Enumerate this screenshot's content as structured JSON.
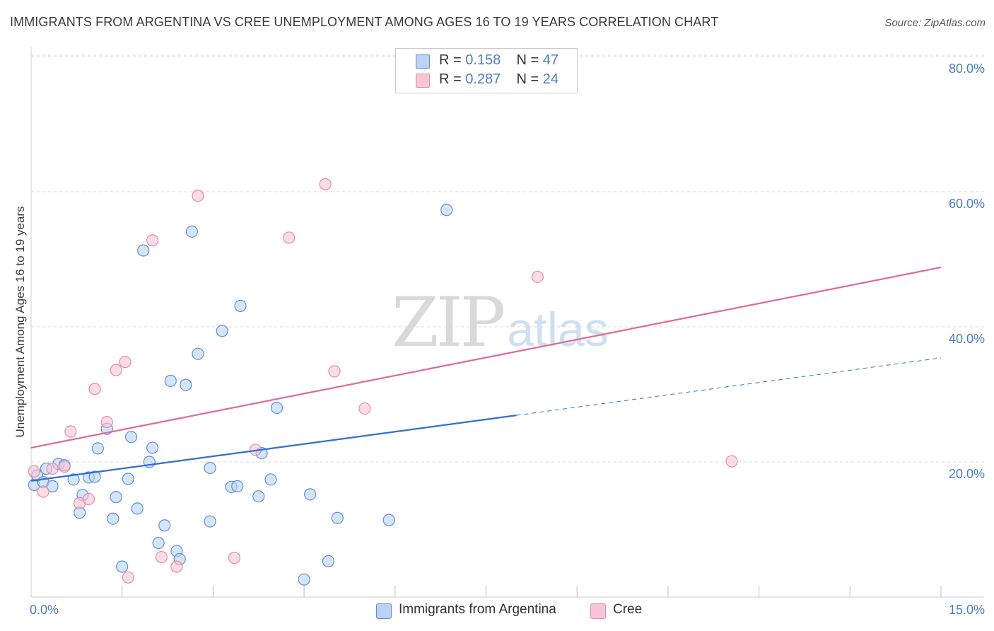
{
  "title": "IMMIGRANTS FROM ARGENTINA VS CREE UNEMPLOYMENT AMONG AGES 16 TO 19 YEARS CORRELATION CHART",
  "source": "Source: ZipAtlas.com",
  "watermark": {
    "zip": "ZIP",
    "atlas": "atlas"
  },
  "colors": {
    "blue_fill": "#b8d3f5",
    "blue_stroke": "#5b8fd8",
    "blue_line": "#2f6fd0",
    "pink_fill": "#f7c5d5",
    "pink_stroke": "#e58aa8",
    "pink_line": "#e06a93",
    "tick_text": "#4a7cc9",
    "grid": "#d8d8d8"
  },
  "legend": {
    "rows": [
      {
        "r_label": "R = ",
        "r_value": "0.158",
        "n_label": "N = ",
        "n_value": "47",
        "series": "blue"
      },
      {
        "r_label": "R = ",
        "r_value": "0.287",
        "n_label": "N = ",
        "n_value": "24",
        "series": "pink"
      }
    ]
  },
  "chart_data": {
    "type": "scatter",
    "title": "IMMIGRANTS FROM ARGENTINA VS CREE UNEMPLOYMENT AMONG AGES 16 TO 19 YEARS CORRELATION CHART",
    "xlabel": "",
    "ylabel": "Unemployment Among Ages 16 to 19 years",
    "xlim": [
      0,
      15
    ],
    "ylim": [
      0,
      80
    ],
    "x_tick_labels": [
      "0.0%",
      "15.0%"
    ],
    "y_ticks": [
      20,
      40,
      60,
      80
    ],
    "y_tick_labels": [
      "20.0%",
      "40.0%",
      "60.0%",
      "80.0%"
    ],
    "grid": true,
    "legend_position": "top-center",
    "series": [
      {
        "name": "Immigrants from Argentina",
        "color": "blue",
        "R": 0.158,
        "N": 47,
        "trend": {
          "x0": 0,
          "y0": 17.2,
          "x1": 8.0,
          "y1": 26.9,
          "dashed_to_x": 15,
          "dashed_to_y": 35.4
        },
        "points": [
          [
            0.05,
            16.6
          ],
          [
            0.1,
            18.0
          ],
          [
            0.2,
            17.0
          ],
          [
            0.25,
            19.0
          ],
          [
            0.35,
            16.4
          ],
          [
            0.45,
            19.7
          ],
          [
            0.55,
            19.5
          ],
          [
            0.7,
            17.4
          ],
          [
            0.8,
            12.5
          ],
          [
            0.85,
            15.1
          ],
          [
            0.95,
            17.7
          ],
          [
            1.05,
            17.8
          ],
          [
            1.1,
            22.0
          ],
          [
            1.25,
            24.9
          ],
          [
            1.35,
            11.6
          ],
          [
            1.4,
            14.8
          ],
          [
            1.5,
            4.5
          ],
          [
            1.6,
            17.5
          ],
          [
            1.65,
            23.7
          ],
          [
            1.75,
            13.1
          ],
          [
            1.85,
            51.3
          ],
          [
            1.95,
            20.0
          ],
          [
            2.0,
            22.1
          ],
          [
            2.1,
            8.0
          ],
          [
            2.2,
            10.6
          ],
          [
            2.3,
            32.0
          ],
          [
            2.4,
            6.8
          ],
          [
            2.45,
            5.6
          ],
          [
            2.55,
            31.4
          ],
          [
            2.65,
            54.1
          ],
          [
            2.75,
            36.0
          ],
          [
            2.95,
            11.2
          ],
          [
            2.95,
            19.1
          ],
          [
            3.15,
            39.4
          ],
          [
            3.3,
            16.3
          ],
          [
            3.4,
            16.4
          ],
          [
            3.45,
            43.1
          ],
          [
            3.75,
            14.9
          ],
          [
            3.8,
            21.3
          ],
          [
            3.95,
            17.4
          ],
          [
            4.05,
            28.0
          ],
          [
            4.5,
            2.6
          ],
          [
            4.6,
            15.2
          ],
          [
            4.9,
            5.3
          ],
          [
            5.05,
            11.7
          ],
          [
            5.9,
            11.4
          ],
          [
            6.85,
            57.3
          ]
        ]
      },
      {
        "name": "Cree",
        "color": "pink",
        "R": 0.287,
        "N": 24,
        "trend": {
          "x0": 0,
          "y0": 22.1,
          "x1": 15,
          "y1": 48.8
        },
        "points": [
          [
            0.05,
            18.6
          ],
          [
            0.2,
            15.6
          ],
          [
            0.35,
            19.0
          ],
          [
            0.55,
            19.3
          ],
          [
            0.65,
            24.5
          ],
          [
            0.8,
            13.9
          ],
          [
            0.95,
            14.5
          ],
          [
            1.05,
            30.8
          ],
          [
            1.25,
            25.9
          ],
          [
            1.4,
            33.6
          ],
          [
            1.55,
            34.8
          ],
          [
            1.6,
            2.9
          ],
          [
            2.0,
            52.8
          ],
          [
            2.15,
            5.9
          ],
          [
            2.4,
            4.5
          ],
          [
            2.75,
            59.4
          ],
          [
            3.35,
            5.8
          ],
          [
            3.7,
            21.8
          ],
          [
            4.25,
            53.2
          ],
          [
            4.85,
            61.1
          ],
          [
            5.0,
            33.4
          ],
          [
            5.5,
            27.9
          ],
          [
            8.35,
            47.4
          ],
          [
            11.55,
            20.1
          ]
        ]
      }
    ]
  },
  "bottom_legend": {
    "items": [
      {
        "label": "Immigrants from Argentina",
        "series": "blue"
      },
      {
        "label": "Cree",
        "series": "pink"
      }
    ]
  }
}
